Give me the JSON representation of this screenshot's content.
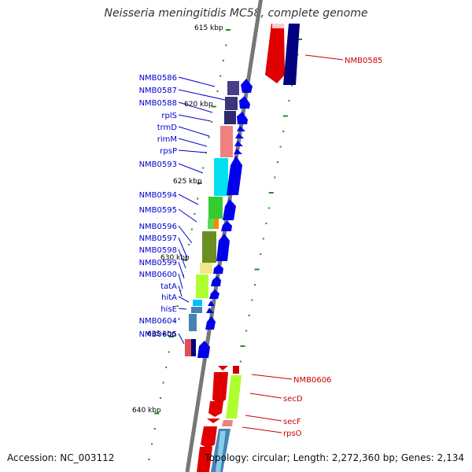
{
  "title": "Neisseria meningitidis MC58, complete genome",
  "footer": {
    "accession": "Accession: NC_003112",
    "summary": "Topology: circular; Length: 2,272,360 bp; Genes: 2,134"
  },
  "ruler_labels": [
    "615 kbp",
    "620 kbp",
    "625 kbp",
    "630 kbp",
    "635 kbp",
    "640 kbp"
  ],
  "left_genes": [
    "NMB0586",
    "NMB0587",
    "NMB0588",
    "rplS",
    "trmD",
    "rimM",
    "rpsP",
    "NMB0593",
    "NMB0594",
    "NMB0595",
    "NMB0596",
    "NMB0597",
    "NMB0598",
    "NMB0599",
    "NMB0600",
    "tatA",
    "hitA",
    "hisE",
    "NMB0604",
    "NMB0605"
  ],
  "right_genes": [
    "NMB0585",
    "NMB0606",
    "secD",
    "secF",
    "rpsO"
  ],
  "colors": {
    "left_label": "#0000cc",
    "right_label": "#cc0000",
    "forward_strand": "#0000ee",
    "reverse_strand": "#ee0000",
    "backbone": "#777777",
    "tick": "#228b22"
  }
}
